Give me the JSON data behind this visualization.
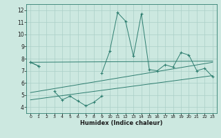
{
  "xlabel": "Humidex (Indice chaleur)",
  "x": [
    0,
    1,
    2,
    3,
    4,
    5,
    6,
    7,
    8,
    9,
    10,
    11,
    12,
    13,
    14,
    15,
    16,
    17,
    18,
    19,
    20,
    21,
    22,
    23
  ],
  "line1_y": [
    7.7,
    7.4,
    null,
    5.3,
    4.6,
    4.9,
    4.5,
    4.1,
    4.4,
    4.9,
    null,
    null,
    null,
    null,
    null,
    null,
    null,
    null,
    null,
    null,
    null,
    null,
    null,
    null
  ],
  "line2_y": [
    7.7,
    7.4,
    null,
    null,
    null,
    null,
    null,
    null,
    null,
    6.8,
    8.6,
    11.8,
    11.1,
    8.2,
    11.7,
    7.1,
    7.0,
    7.5,
    7.3,
    8.5,
    8.3,
    7.0,
    7.2,
    6.5
  ],
  "trend1_x": [
    0,
    23
  ],
  "trend1_y": [
    7.7,
    7.8
  ],
  "trend2_x": [
    0,
    23
  ],
  "trend2_y": [
    5.2,
    7.7
  ],
  "trend3_x": [
    0,
    23
  ],
  "trend3_y": [
    4.6,
    6.6
  ],
  "ylim": [
    3.5,
    12.5
  ],
  "xlim": [
    -0.5,
    23.5
  ],
  "yticks": [
    4,
    5,
    6,
    7,
    8,
    9,
    10,
    11,
    12
  ],
  "xticks": [
    0,
    1,
    2,
    3,
    4,
    5,
    6,
    7,
    8,
    9,
    10,
    11,
    12,
    13,
    14,
    15,
    16,
    17,
    18,
    19,
    20,
    21,
    22,
    23
  ],
  "line_color": "#2d7d6f",
  "bg_color": "#cce8e0",
  "grid_color": "#aacfc7",
  "spine_color": "#2d7d6f"
}
